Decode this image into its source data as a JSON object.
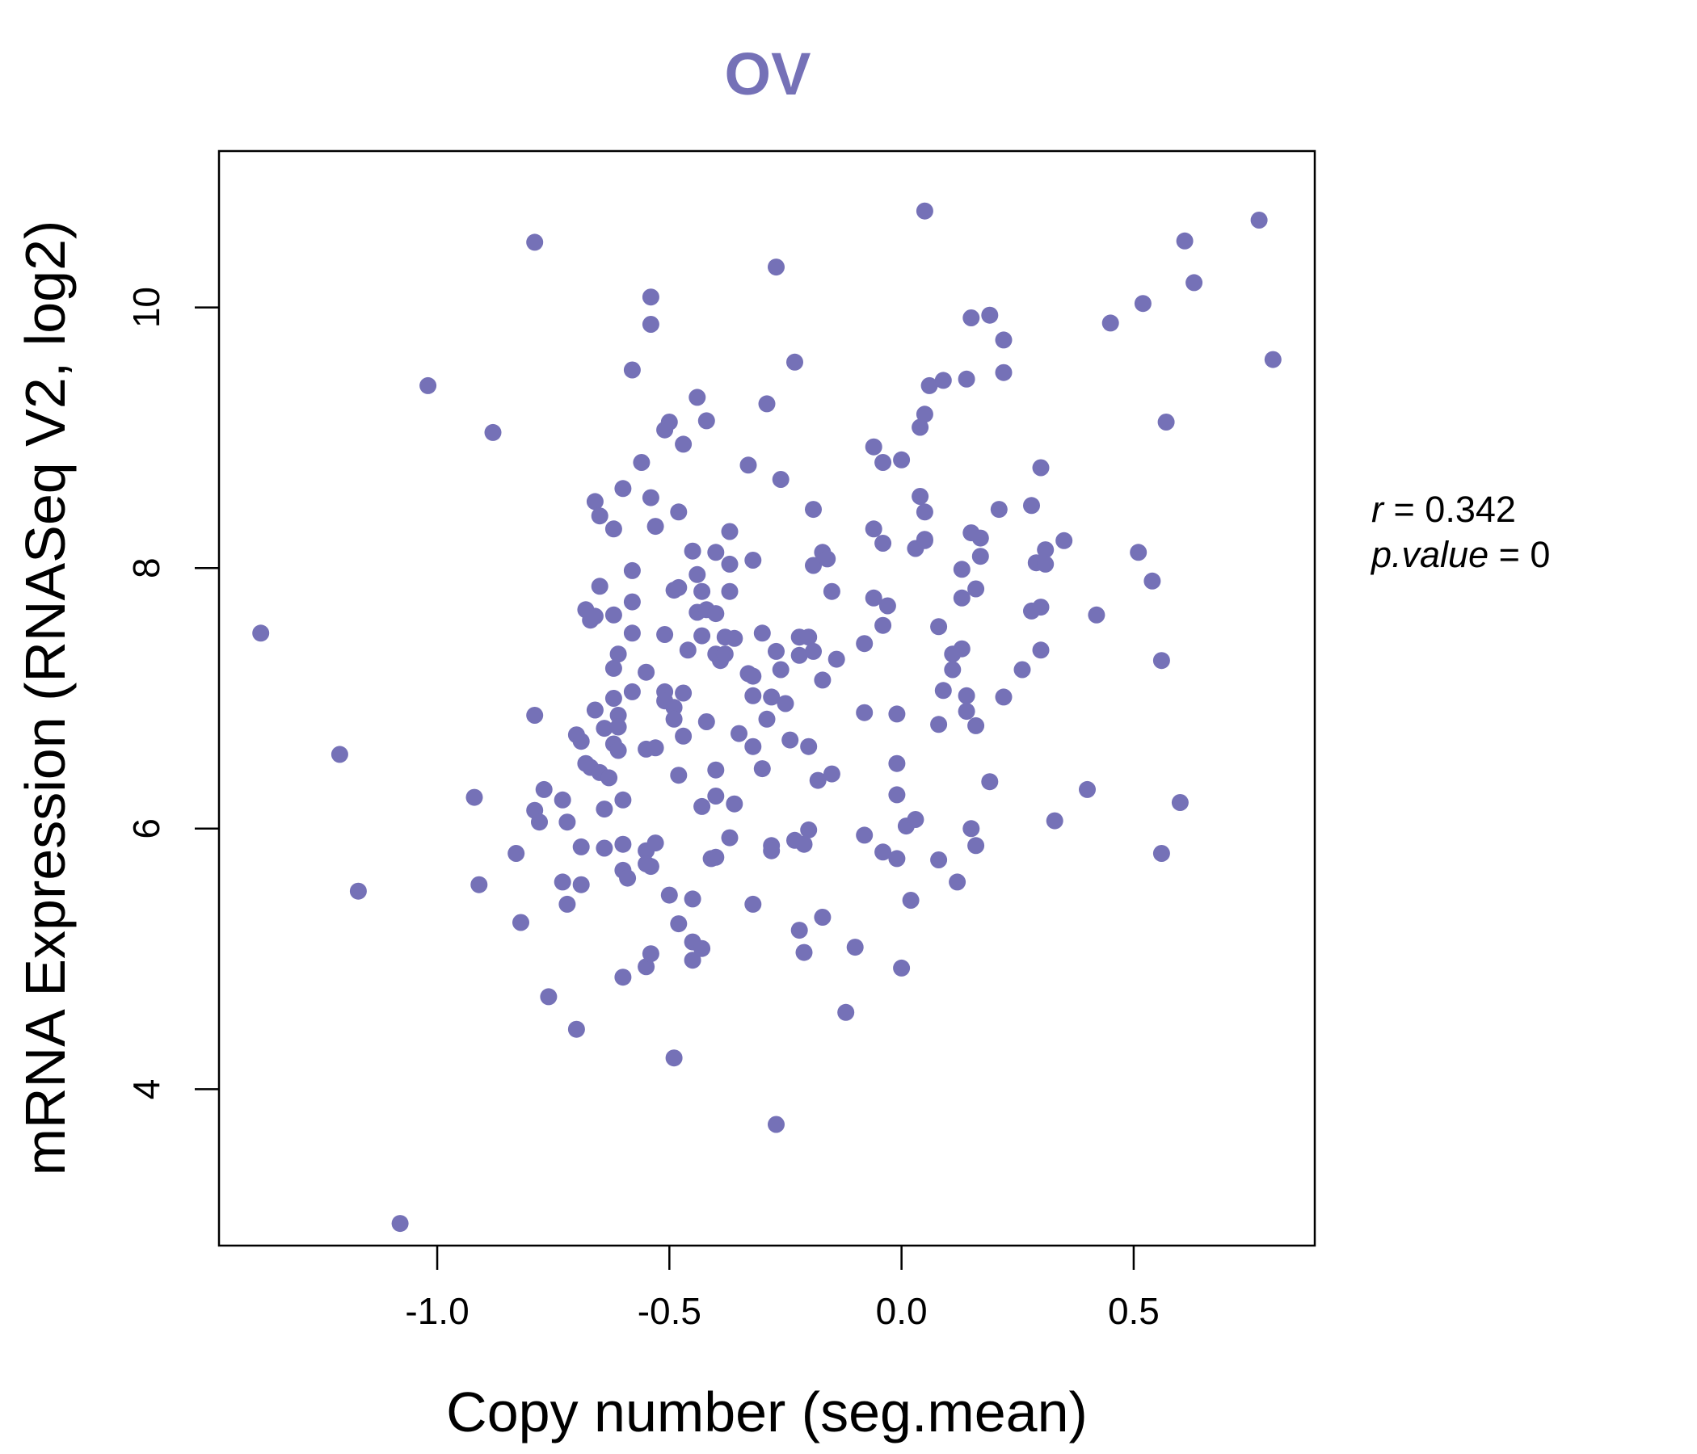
{
  "colors": {
    "accent": "#7571b7",
    "axis": "#000000",
    "background": "#ffffff"
  },
  "chart_data": {
    "type": "scatter",
    "title": "OV",
    "xlabel": "Copy number (seg.mean)",
    "ylabel": "mRNA Expression (RNASeq V2, log2)",
    "xlim": [
      -1.47,
      0.89
    ],
    "ylim": [
      2.8,
      11.2
    ],
    "x_ticks": [
      -1.0,
      -0.5,
      0.0,
      0.5
    ],
    "x_tick_labels": [
      "-1.0",
      "-0.5",
      "0.0",
      "0.5"
    ],
    "y_ticks": [
      4,
      6,
      8,
      10
    ],
    "y_tick_labels": [
      "4",
      "6",
      "8",
      "10"
    ],
    "grid": false,
    "annotations": {
      "r_label": "r",
      "r_value": "0.342",
      "p_label": "p.value",
      "p_value": "0"
    },
    "points": [
      [
        -1.38,
        7.5
      ],
      [
        -1.02,
        9.4
      ],
      [
        -0.88,
        9.04
      ],
      [
        -0.79,
        10.5
      ],
      [
        -1.21,
        6.57
      ],
      [
        -1.17,
        5.52
      ],
      [
        -1.08,
        2.97
      ],
      [
        -0.92,
        6.24
      ],
      [
        -0.91,
        5.57
      ],
      [
        -0.83,
        5.81
      ],
      [
        -0.82,
        5.28
      ],
      [
        -0.79,
        6.87
      ],
      [
        -0.79,
        6.14
      ],
      [
        -0.78,
        6.05
      ],
      [
        -0.77,
        6.3
      ],
      [
        -0.76,
        4.71
      ],
      [
        -0.73,
        6.22
      ],
      [
        -0.73,
        5.59
      ],
      [
        -0.72,
        6.05
      ],
      [
        -0.72,
        5.42
      ],
      [
        -0.7,
        6.72
      ],
      [
        -0.7,
        4.46
      ],
      [
        -0.69,
        6.67
      ],
      [
        -0.69,
        5.86
      ],
      [
        -0.69,
        5.57
      ],
      [
        -0.68,
        7.68
      ],
      [
        -0.68,
        6.5
      ],
      [
        -0.67,
        7.6
      ],
      [
        -0.67,
        6.47
      ],
      [
        -0.66,
        8.51
      ],
      [
        -0.66,
        7.63
      ],
      [
        -0.66,
        6.91
      ],
      [
        -0.65,
        8.4
      ],
      [
        -0.65,
        7.86
      ],
      [
        -0.65,
        6.43
      ],
      [
        -0.64,
        6.77
      ],
      [
        -0.64,
        6.15
      ],
      [
        -0.64,
        5.85
      ],
      [
        -0.63,
        6.39
      ],
      [
        -0.62,
        8.3
      ],
      [
        -0.62,
        7.64
      ],
      [
        -0.62,
        7.23
      ],
      [
        -0.62,
        7.0
      ],
      [
        -0.62,
        6.65
      ],
      [
        -0.61,
        7.34
      ],
      [
        -0.61,
        6.87
      ],
      [
        -0.61,
        6.6
      ],
      [
        -0.61,
        6.78
      ],
      [
        -0.6,
        8.61
      ],
      [
        -0.6,
        6.22
      ],
      [
        -0.6,
        5.88
      ],
      [
        -0.6,
        5.68
      ],
      [
        -0.6,
        4.86
      ],
      [
        -0.59,
        5.62
      ],
      [
        -0.58,
        7.5
      ],
      [
        -0.58,
        7.74
      ],
      [
        -0.58,
        7.98
      ],
      [
        -0.58,
        7.05
      ],
      [
        -0.58,
        9.52
      ],
      [
        -0.56,
        8.81
      ],
      [
        -0.55,
        7.2
      ],
      [
        -0.55,
        6.61
      ],
      [
        -0.55,
        5.83
      ],
      [
        -0.55,
        5.73
      ],
      [
        -0.55,
        4.94
      ],
      [
        -0.54,
        10.08
      ],
      [
        -0.54,
        9.87
      ],
      [
        -0.54,
        8.54
      ],
      [
        -0.54,
        5.71
      ],
      [
        -0.54,
        5.04
      ],
      [
        -0.53,
        8.32
      ],
      [
        -0.53,
        6.62
      ],
      [
        -0.53,
        5.89
      ],
      [
        -0.51,
        9.06
      ],
      [
        -0.51,
        7.49
      ],
      [
        -0.51,
        7.05
      ],
      [
        -0.51,
        6.98
      ],
      [
        -0.5,
        9.12
      ],
      [
        -0.5,
        5.49
      ],
      [
        -0.49,
        6.93
      ],
      [
        -0.49,
        6.84
      ],
      [
        -0.49,
        4.24
      ],
      [
        -0.49,
        7.83
      ],
      [
        -0.48,
        8.43
      ],
      [
        -0.48,
        7.85
      ],
      [
        -0.48,
        6.41
      ],
      [
        -0.48,
        5.27
      ],
      [
        -0.47,
        8.95
      ],
      [
        -0.47,
        6.71
      ],
      [
        -0.47,
        7.04
      ],
      [
        -0.46,
        7.37
      ],
      [
        -0.45,
        8.13
      ],
      [
        -0.45,
        5.46
      ],
      [
        -0.45,
        5.13
      ],
      [
        -0.45,
        4.99
      ],
      [
        -0.44,
        9.31
      ],
      [
        -0.44,
        7.95
      ],
      [
        -0.44,
        7.66
      ],
      [
        -0.43,
        7.82
      ],
      [
        -0.43,
        7.48
      ],
      [
        -0.43,
        6.17
      ],
      [
        -0.43,
        5.08
      ],
      [
        -0.42,
        9.13
      ],
      [
        -0.42,
        7.68
      ],
      [
        -0.42,
        6.82
      ],
      [
        -0.41,
        5.77
      ],
      [
        -0.4,
        8.12
      ],
      [
        -0.4,
        7.65
      ],
      [
        -0.4,
        7.34
      ],
      [
        -0.4,
        6.45
      ],
      [
        -0.4,
        6.25
      ],
      [
        -0.4,
        5.78
      ],
      [
        -0.39,
        7.29
      ],
      [
        -0.38,
        7.34
      ],
      [
        -0.38,
        7.47
      ],
      [
        -0.37,
        8.28
      ],
      [
        -0.37,
        8.03
      ],
      [
        -0.37,
        7.82
      ],
      [
        -0.37,
        5.93
      ],
      [
        -0.36,
        7.46
      ],
      [
        -0.36,
        6.19
      ],
      [
        -0.35,
        6.73
      ],
      [
        -0.33,
        8.79
      ],
      [
        -0.33,
        7.19
      ],
      [
        -0.32,
        7.17
      ],
      [
        -0.32,
        8.06
      ],
      [
        -0.32,
        7.02
      ],
      [
        -0.32,
        6.63
      ],
      [
        -0.32,
        5.42
      ],
      [
        -0.3,
        7.5
      ],
      [
        -0.3,
        6.46
      ],
      [
        -0.29,
        9.26
      ],
      [
        -0.29,
        6.84
      ],
      [
        -0.28,
        7.01
      ],
      [
        -0.28,
        5.87
      ],
      [
        -0.28,
        5.83
      ],
      [
        -0.27,
        10.31
      ],
      [
        -0.27,
        7.36
      ],
      [
        -0.27,
        3.73
      ],
      [
        -0.26,
        8.68
      ],
      [
        -0.26,
        7.22
      ],
      [
        -0.25,
        6.96
      ],
      [
        -0.24,
        6.68
      ],
      [
        -0.23,
        9.58
      ],
      [
        -0.23,
        5.91
      ],
      [
        -0.22,
        7.47
      ],
      [
        -0.22,
        7.33
      ],
      [
        -0.22,
        5.22
      ],
      [
        -0.21,
        5.88
      ],
      [
        -0.21,
        5.05
      ],
      [
        -0.2,
        7.47
      ],
      [
        -0.2,
        6.63
      ],
      [
        -0.2,
        5.99
      ],
      [
        -0.19,
        8.45
      ],
      [
        -0.19,
        8.02
      ],
      [
        -0.19,
        7.36
      ],
      [
        -0.18,
        6.37
      ],
      [
        -0.17,
        8.12
      ],
      [
        -0.17,
        7.14
      ],
      [
        -0.17,
        5.32
      ],
      [
        -0.16,
        8.07
      ],
      [
        -0.15,
        7.82
      ],
      [
        -0.15,
        6.42
      ],
      [
        -0.14,
        7.3
      ],
      [
        -0.12,
        4.59
      ],
      [
        -0.1,
        5.09
      ],
      [
        -0.08,
        6.89
      ],
      [
        -0.08,
        5.95
      ],
      [
        -0.08,
        7.42
      ],
      [
        -0.06,
        8.3
      ],
      [
        -0.06,
        8.93
      ],
      [
        -0.06,
        7.77
      ],
      [
        -0.04,
        8.81
      ],
      [
        -0.04,
        8.19
      ],
      [
        -0.04,
        7.56
      ],
      [
        -0.04,
        5.82
      ],
      [
        -0.03,
        7.71
      ],
      [
        -0.01,
        6.88
      ],
      [
        -0.01,
        6.5
      ],
      [
        -0.01,
        6.26
      ],
      [
        -0.01,
        5.77
      ],
      [
        0.0,
        8.83
      ],
      [
        0.0,
        4.93
      ],
      [
        0.01,
        6.02
      ],
      [
        0.02,
        5.45
      ],
      [
        0.03,
        6.07
      ],
      [
        0.03,
        8.15
      ],
      [
        0.04,
        9.08
      ],
      [
        0.04,
        8.55
      ],
      [
        0.05,
        10.74
      ],
      [
        0.05,
        8.43
      ],
      [
        0.05,
        8.22
      ],
      [
        0.05,
        8.21
      ],
      [
        0.05,
        9.18
      ],
      [
        0.06,
        9.4
      ],
      [
        0.08,
        7.55
      ],
      [
        0.08,
        6.8
      ],
      [
        0.08,
        5.76
      ],
      [
        0.09,
        9.44
      ],
      [
        0.09,
        7.06
      ],
      [
        0.11,
        7.34
      ],
      [
        0.11,
        7.22
      ],
      [
        0.12,
        5.59
      ],
      [
        0.13,
        7.99
      ],
      [
        0.13,
        7.77
      ],
      [
        0.13,
        7.38
      ],
      [
        0.14,
        7.02
      ],
      [
        0.14,
        6.9
      ],
      [
        0.14,
        9.45
      ],
      [
        0.15,
        9.92
      ],
      [
        0.15,
        8.27
      ],
      [
        0.15,
        6.0
      ],
      [
        0.16,
        7.84
      ],
      [
        0.16,
        6.79
      ],
      [
        0.16,
        5.87
      ],
      [
        0.17,
        8.23
      ],
      [
        0.17,
        8.09
      ],
      [
        0.19,
        9.94
      ],
      [
        0.19,
        6.36
      ],
      [
        0.21,
        8.45
      ],
      [
        0.22,
        7.01
      ],
      [
        0.22,
        9.75
      ],
      [
        0.22,
        9.5
      ],
      [
        0.26,
        7.22
      ],
      [
        0.28,
        8.48
      ],
      [
        0.28,
        7.67
      ],
      [
        0.29,
        8.04
      ],
      [
        0.3,
        8.77
      ],
      [
        0.3,
        7.7
      ],
      [
        0.3,
        7.37
      ],
      [
        0.31,
        8.14
      ],
      [
        0.31,
        8.03
      ],
      [
        0.33,
        6.06
      ],
      [
        0.35,
        8.21
      ],
      [
        0.4,
        6.3
      ],
      [
        0.42,
        7.64
      ],
      [
        0.45,
        9.88
      ],
      [
        0.51,
        8.12
      ],
      [
        0.52,
        10.03
      ],
      [
        0.54,
        7.9
      ],
      [
        0.56,
        7.29
      ],
      [
        0.56,
        5.81
      ],
      [
        0.57,
        9.12
      ],
      [
        0.6,
        6.2
      ],
      [
        0.61,
        10.51
      ],
      [
        0.63,
        10.19
      ],
      [
        0.77,
        10.67
      ],
      [
        0.8,
        9.6
      ]
    ]
  }
}
